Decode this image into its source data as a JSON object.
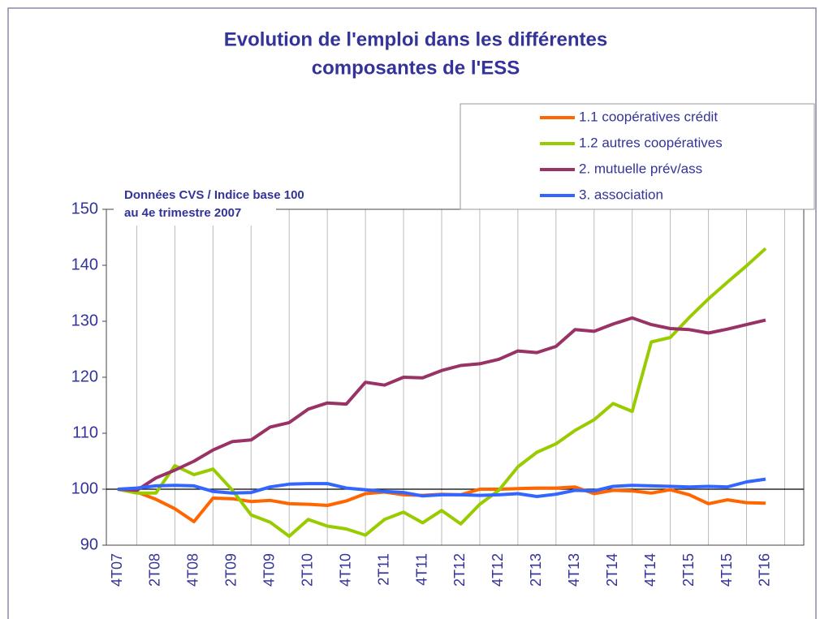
{
  "chart_data": {
    "type": "line",
    "title": [
      "Evolution de l'emploi dans les différentes",
      "composantes de l'ESS"
    ],
    "annotation": [
      "Données CVS / Indice base 100",
      "au 4e trimestre 2007"
    ],
    "categories": [
      "4T07",
      null,
      "2T08",
      null,
      "4T08",
      null,
      "2T09",
      null,
      "4T09",
      null,
      "2T10",
      null,
      "4T10",
      null,
      "2T11",
      null,
      "4T11",
      null,
      "2T12",
      null,
      "4T12",
      null,
      "2T13",
      null,
      "4T13",
      null,
      "2T14",
      null,
      "4T14",
      null,
      "2T15",
      null,
      "4T15",
      null,
      "2T16"
    ],
    "series": [
      {
        "name": "1.1 coopératives crédit",
        "color": "#ff6600",
        "values": [
          100,
          99.5,
          98.2,
          96.5,
          94.2,
          98.4,
          98.3,
          97.8,
          98.0,
          97.4,
          97.3,
          97.1,
          97.9,
          99.2,
          99.5,
          99.0,
          98.9,
          99.1,
          99.0,
          100.0,
          100.0,
          100.1,
          100.2,
          100.2,
          100.4,
          99.2,
          99.8,
          99.7,
          99.3,
          99.9,
          99.0,
          97.4,
          98.1,
          97.6,
          97.5
        ]
      },
      {
        "name": "1.2 autres coopératives",
        "color": "#99cc00",
        "values": [
          100,
          99.3,
          99.3,
          104.2,
          102.6,
          103.6,
          99.9,
          95.4,
          94.1,
          91.6,
          94.6,
          93.4,
          92.9,
          91.8,
          94.6,
          95.9,
          94.0,
          96.2,
          93.8,
          97.3,
          99.8,
          104.0,
          106.6,
          108.1,
          110.5,
          112.4,
          115.3,
          113.9,
          126.3,
          127.1,
          130.7,
          134.0,
          137.0,
          139.9,
          143.0
        ]
      },
      {
        "name": "2. mutuelle prév/ass",
        "color": "#993366",
        "values": [
          100,
          99.8,
          102.0,
          103.4,
          105.0,
          107.0,
          108.5,
          108.8,
          111.1,
          111.9,
          114.3,
          115.4,
          115.2,
          119.1,
          118.6,
          120.0,
          119.9,
          121.2,
          122.1,
          122.4,
          123.2,
          124.7,
          124.4,
          125.5,
          128.5,
          128.2,
          129.5,
          130.6,
          129.4,
          128.7,
          128.5,
          127.9,
          128.6,
          129.4,
          130.2
        ]
      },
      {
        "name": "3. association",
        "color": "#3366ff",
        "values": [
          100,
          100.2,
          100.6,
          100.7,
          100.6,
          99.6,
          99.3,
          99.4,
          100.4,
          100.9,
          101.0,
          101.0,
          100.2,
          99.9,
          99.6,
          99.4,
          98.8,
          99.0,
          99.0,
          98.9,
          99.0,
          99.2,
          98.7,
          99.1,
          99.8,
          99.7,
          100.5,
          100.7,
          100.6,
          100.5,
          100.4,
          100.5,
          100.4,
          101.3,
          101.8
        ]
      }
    ],
    "ylim": [
      90,
      150
    ],
    "yticks": [
      90,
      100,
      110,
      120,
      130,
      140,
      150
    ],
    "reference_line": 100,
    "grid": "x"
  }
}
